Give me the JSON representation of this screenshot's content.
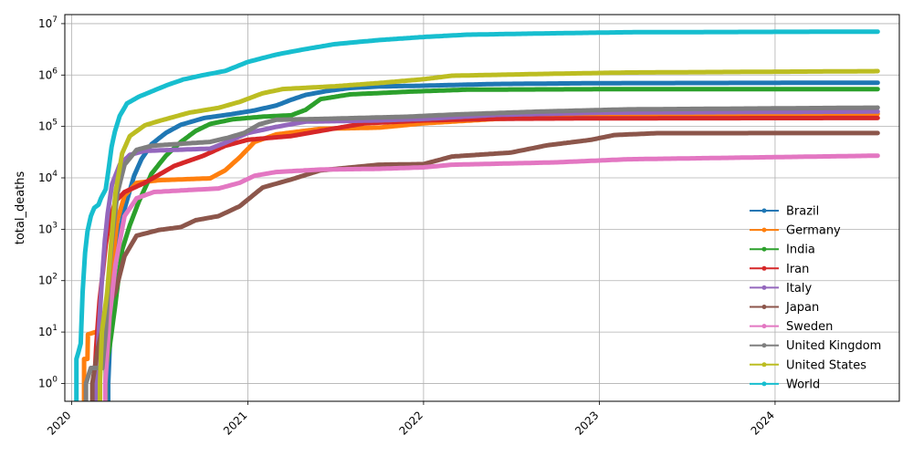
{
  "chart_data": {
    "type": "line",
    "title": "",
    "xlabel": "",
    "ylabel": "total_deaths",
    "yscale": "log",
    "ylim": [
      0.45,
      15000000
    ],
    "xlim": [
      "2019-12-18",
      "2024-09-15"
    ],
    "grid": true,
    "legend_position": "right",
    "x_ticks": [
      {
        "date": "2020-01-01",
        "label": "2020"
      },
      {
        "date": "2021-01-01",
        "label": "2021"
      },
      {
        "date": "2022-01-01",
        "label": "2022"
      },
      {
        "date": "2023-01-01",
        "label": "2023"
      },
      {
        "date": "2024-01-01",
        "label": "2024"
      }
    ],
    "y_ticks": [
      {
        "value": 1,
        "base": "10",
        "exp": "0"
      },
      {
        "value": 10,
        "base": "10",
        "exp": "1"
      },
      {
        "value": 100,
        "base": "10",
        "exp": "2"
      },
      {
        "value": 1000,
        "base": "10",
        "exp": "3"
      },
      {
        "value": 10000,
        "base": "10",
        "exp": "4"
      },
      {
        "value": 100000,
        "base": "10",
        "exp": "5"
      },
      {
        "value": 1000000,
        "base": "10",
        "exp": "6"
      },
      {
        "value": 10000000,
        "base": "10",
        "exp": "7"
      }
    ],
    "series": [
      {
        "name": "Brazil",
        "color": "#1f77b4",
        "points": [
          [
            "2020-03-17",
            1
          ],
          [
            "2020-03-24",
            30
          ],
          [
            "2020-04-05",
            500
          ],
          [
            "2020-04-20",
            2500
          ],
          [
            "2020-05-10",
            11000
          ],
          [
            "2020-05-25",
            23000
          ],
          [
            "2020-06-15",
            45000
          ],
          [
            "2020-07-15",
            75000
          ],
          [
            "2020-08-15",
            108000
          ],
          [
            "2020-10-01",
            145000
          ],
          [
            "2020-12-01",
            175000
          ],
          [
            "2021-01-15",
            205000
          ],
          [
            "2021-03-01",
            255000
          ],
          [
            "2021-04-01",
            330000
          ],
          [
            "2021-05-01",
            410000
          ],
          [
            "2021-06-15",
            490000
          ],
          [
            "2021-08-01",
            560000
          ],
          [
            "2021-10-01",
            600000
          ],
          [
            "2022-01-01",
            620000
          ],
          [
            "2022-06-01",
            670000
          ],
          [
            "2023-01-01",
            695000
          ],
          [
            "2024-08-01",
            710000
          ]
        ]
      },
      {
        "name": "Germany",
        "color": "#ff7f0e",
        "points": [
          [
            "2020-01-27",
            3
          ],
          [
            "2020-02-03",
            3
          ],
          [
            "2020-02-04",
            9
          ],
          [
            "2020-02-20",
            10
          ],
          [
            "2020-03-08",
            12
          ],
          [
            "2020-03-15",
            30
          ],
          [
            "2020-03-25",
            200
          ],
          [
            "2020-04-05",
            1500
          ],
          [
            "2020-04-20",
            4500
          ],
          [
            "2020-05-15",
            8000
          ],
          [
            "2020-07-01",
            9000
          ],
          [
            "2020-10-15",
            9800
          ],
          [
            "2020-11-15",
            14000
          ],
          [
            "2020-12-15",
            25000
          ],
          [
            "2021-01-15",
            50000
          ],
          [
            "2021-03-01",
            70000
          ],
          [
            "2021-06-01",
            90000
          ],
          [
            "2021-10-01",
            95000
          ],
          [
            "2022-01-01",
            115000
          ],
          [
            "2022-06-01",
            140000
          ],
          [
            "2023-01-01",
            160000
          ],
          [
            "2024-08-01",
            175000
          ]
        ]
      },
      {
        "name": "India",
        "color": "#2ca02c",
        "points": [
          [
            "2020-03-12",
            2
          ],
          [
            "2020-03-20",
            5
          ],
          [
            "2020-03-31",
            30
          ],
          [
            "2020-04-15",
            400
          ],
          [
            "2020-05-01",
            1200
          ],
          [
            "2020-05-20",
            3500
          ],
          [
            "2020-06-15",
            12000
          ],
          [
            "2020-07-15",
            27000
          ],
          [
            "2020-08-15",
            50000
          ],
          [
            "2020-09-15",
            82000
          ],
          [
            "2020-10-15",
            112000
          ],
          [
            "2020-12-01",
            138000
          ],
          [
            "2021-02-01",
            155000
          ],
          [
            "2021-04-01",
            165000
          ],
          [
            "2021-05-01",
            210000
          ],
          [
            "2021-06-01",
            340000
          ],
          [
            "2021-08-01",
            420000
          ],
          [
            "2021-12-01",
            475000
          ],
          [
            "2022-04-01",
            520000
          ],
          [
            "2023-01-01",
            530000
          ],
          [
            "2024-08-01",
            533000
          ]
        ]
      },
      {
        "name": "Iran",
        "color": "#d62728",
        "points": [
          [
            "2020-02-19",
            2
          ],
          [
            "2020-02-21",
            5
          ],
          [
            "2020-02-28",
            40
          ],
          [
            "2020-03-06",
            150
          ],
          [
            "2020-03-12",
            500
          ],
          [
            "2020-03-20",
            1500
          ],
          [
            "2020-04-01",
            3500
          ],
          [
            "2020-04-20",
            5300
          ],
          [
            "2020-06-01",
            8000
          ],
          [
            "2020-08-01",
            17000
          ],
          [
            "2020-10-01",
            27000
          ],
          [
            "2020-11-15",
            42000
          ],
          [
            "2021-01-01",
            55000
          ],
          [
            "2021-04-01",
            65000
          ],
          [
            "2021-06-01",
            82000
          ],
          [
            "2021-09-01",
            115000
          ],
          [
            "2022-01-01",
            131000
          ],
          [
            "2022-06-01",
            141000
          ],
          [
            "2023-01-01",
            144000
          ],
          [
            "2024-08-01",
            146000
          ]
        ]
      },
      {
        "name": "Italy",
        "color": "#9467bd",
        "points": [
          [
            "2020-02-21",
            1
          ],
          [
            "2020-02-27",
            12
          ],
          [
            "2020-03-04",
            100
          ],
          [
            "2020-03-10",
            600
          ],
          [
            "2020-03-16",
            2000
          ],
          [
            "2020-03-25",
            7500
          ],
          [
            "2020-04-10",
            18000
          ],
          [
            "2020-05-01",
            28000
          ],
          [
            "2020-06-01",
            33500
          ],
          [
            "2020-08-01",
            35000
          ],
          [
            "2020-10-15",
            37000
          ],
          [
            "2020-11-15",
            48000
          ],
          [
            "2020-12-31",
            74000
          ],
          [
            "2021-03-01",
            98000
          ],
          [
            "2021-05-01",
            124000
          ],
          [
            "2021-10-01",
            131000
          ],
          [
            "2022-01-01",
            140000
          ],
          [
            "2022-06-01",
            168000
          ],
          [
            "2023-01-01",
            185000
          ],
          [
            "2024-08-01",
            195000
          ]
        ]
      },
      {
        "name": "Japan",
        "color": "#8c564b",
        "points": [
          [
            "2020-02-13",
            1
          ],
          [
            "2020-02-25",
            5
          ],
          [
            "2020-03-15",
            30
          ],
          [
            "2020-04-01",
            60
          ],
          [
            "2020-04-20",
            300
          ],
          [
            "2020-05-15",
            750
          ],
          [
            "2020-07-01",
            970
          ],
          [
            "2020-08-15",
            1100
          ],
          [
            "2020-09-15",
            1500
          ],
          [
            "2020-11-01",
            1800
          ],
          [
            "2020-12-15",
            2800
          ],
          [
            "2021-02-01",
            6500
          ],
          [
            "2021-04-01",
            9300
          ],
          [
            "2021-06-01",
            14000
          ],
          [
            "2021-10-01",
            18000
          ],
          [
            "2022-01-01",
            18500
          ],
          [
            "2022-03-01",
            26000
          ],
          [
            "2022-07-01",
            31000
          ],
          [
            "2022-09-15",
            43000
          ],
          [
            "2022-12-15",
            55000
          ],
          [
            "2023-02-01",
            68000
          ],
          [
            "2023-05-01",
            74000
          ],
          [
            "2024-08-01",
            74500
          ]
        ]
      },
      {
        "name": "Sweden",
        "color": "#e377c2",
        "points": [
          [
            "2020-03-11",
            1
          ],
          [
            "2020-03-20",
            20
          ],
          [
            "2020-04-01",
            200
          ],
          [
            "2020-04-20",
            1800
          ],
          [
            "2020-05-15",
            4000
          ],
          [
            "2020-06-20",
            5300
          ],
          [
            "2020-09-01",
            5800
          ],
          [
            "2020-11-01",
            6200
          ],
          [
            "2020-12-15",
            8000
          ],
          [
            "2021-01-15",
            11000
          ],
          [
            "2021-03-01",
            13000
          ],
          [
            "2021-06-01",
            14500
          ],
          [
            "2021-10-01",
            15000
          ],
          [
            "2022-01-01",
            16000
          ],
          [
            "2022-03-01",
            18000
          ],
          [
            "2022-10-01",
            20000
          ],
          [
            "2023-03-01",
            23000
          ],
          [
            "2024-08-01",
            27000
          ]
        ]
      },
      {
        "name": "United Kingdom",
        "color": "#7f7f7f",
        "points": [
          [
            "2020-01-31",
            1
          ],
          [
            "2020-02-10",
            2
          ],
          [
            "2020-03-05",
            2
          ],
          [
            "2020-03-12",
            10
          ],
          [
            "2020-03-19",
            150
          ],
          [
            "2020-03-25",
            600
          ],
          [
            "2020-04-05",
            5000
          ],
          [
            "2020-04-20",
            18000
          ],
          [
            "2020-05-15",
            35000
          ],
          [
            "2020-06-15",
            42000
          ],
          [
            "2020-08-15",
            46000
          ],
          [
            "2020-10-15",
            50000
          ],
          [
            "2020-11-20",
            60000
          ],
          [
            "2020-12-25",
            75000
          ],
          [
            "2021-01-25",
            110000
          ],
          [
            "2021-03-01",
            135000
          ],
          [
            "2021-06-01",
            140000
          ],
          [
            "2021-12-01",
            155000
          ],
          [
            "2022-03-01",
            170000
          ],
          [
            "2022-09-01",
            195000
          ],
          [
            "2023-03-01",
            215000
          ],
          [
            "2024-08-01",
            232000
          ]
        ]
      },
      {
        "name": "United States",
        "color": "#bcbd22",
        "points": [
          [
            "2020-02-29",
            1
          ],
          [
            "2020-03-04",
            10
          ],
          [
            "2020-03-15",
            60
          ],
          [
            "2020-03-22",
            400
          ],
          [
            "2020-04-01",
            5000
          ],
          [
            "2020-04-15",
            30000
          ],
          [
            "2020-05-01",
            65000
          ],
          [
            "2020-06-01",
            105000
          ],
          [
            "2020-07-01",
            128000
          ],
          [
            "2020-09-01",
            185000
          ],
          [
            "2020-11-01",
            230000
          ],
          [
            "2020-12-15",
            300000
          ],
          [
            "2021-01-31",
            440000
          ],
          [
            "2021-03-15",
            535000
          ],
          [
            "2021-07-01",
            605000
          ],
          [
            "2021-10-01",
            700000
          ],
          [
            "2022-01-01",
            830000
          ],
          [
            "2022-03-01",
            970000
          ],
          [
            "2022-09-01",
            1050000
          ],
          [
            "2023-03-01",
            1120000
          ],
          [
            "2024-08-01",
            1190000
          ]
        ]
      },
      {
        "name": "World",
        "color": "#17becf",
        "points": [
          [
            "2020-01-11",
            3
          ],
          [
            "2020-01-15",
            4
          ],
          [
            "2020-01-20",
            6
          ],
          [
            "2020-01-24",
            60
          ],
          [
            "2020-01-29",
            350
          ],
          [
            "2020-02-03",
            900
          ],
          [
            "2020-02-10",
            1800
          ],
          [
            "2020-02-17",
            2600
          ],
          [
            "2020-02-26",
            3000
          ],
          [
            "2020-03-02",
            4000
          ],
          [
            "2020-03-12",
            6000
          ],
          [
            "2020-03-18",
            15000
          ],
          [
            "2020-03-24",
            40000
          ],
          [
            "2020-03-31",
            80000
          ],
          [
            "2020-04-10",
            160000
          ],
          [
            "2020-04-25",
            280000
          ],
          [
            "2020-05-20",
            380000
          ],
          [
            "2020-06-20",
            500000
          ],
          [
            "2020-07-20",
            650000
          ],
          [
            "2020-08-20",
            820000
          ],
          [
            "2020-10-01",
            1000000
          ],
          [
            "2020-11-15",
            1200000
          ],
          [
            "2021-01-01",
            1800000
          ],
          [
            "2021-03-01",
            2500000
          ],
          [
            "2021-05-01",
            3200000
          ],
          [
            "2021-07-01",
            4000000
          ],
          [
            "2021-10-01",
            4800000
          ],
          [
            "2022-01-01",
            5500000
          ],
          [
            "2022-04-01",
            6100000
          ],
          [
            "2022-10-01",
            6500000
          ],
          [
            "2023-03-01",
            6800000
          ],
          [
            "2024-08-01",
            7000000
          ]
        ]
      }
    ]
  }
}
